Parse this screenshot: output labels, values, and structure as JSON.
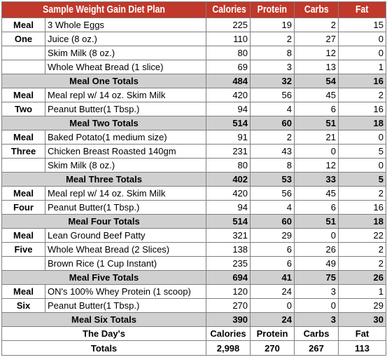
{
  "headers": {
    "title": "Sample Weight Gain Diet Plan",
    "calories": "Calories",
    "protein": "Protein",
    "carbs": "Carbs",
    "fat": "Fat"
  },
  "meals": [
    {
      "label_line1": "Meal",
      "label_line2": "One",
      "items": [
        {
          "food": "3 Whole Eggs",
          "calories": "225",
          "protein": "19",
          "carbs": "2",
          "fat": "15"
        },
        {
          "food": "Juice (8 oz.)",
          "calories": "110",
          "protein": "2",
          "carbs": "27",
          "fat": "0"
        },
        {
          "food": "Skim Milk (8 oz.)",
          "calories": "80",
          "protein": "8",
          "carbs": "12",
          "fat": "0"
        },
        {
          "food": "Whole Wheat Bread (1 slice)",
          "calories": "69",
          "protein": "3",
          "carbs": "13",
          "fat": "1"
        }
      ],
      "total": {
        "label": "Meal One Totals",
        "calories": "484",
        "protein": "32",
        "carbs": "54",
        "fat": "16"
      }
    },
    {
      "label_line1": "Meal",
      "label_line2": "Two",
      "items": [
        {
          "food": "Meal repl w/ 14 oz. Skim Milk",
          "calories": "420",
          "protein": "56",
          "carbs": "45",
          "fat": "2"
        },
        {
          "food": "Peanut Butter(1 Tbsp.)",
          "calories": "94",
          "protein": "4",
          "carbs": "6",
          "fat": "16"
        }
      ],
      "total": {
        "label": "Meal Two Totals",
        "calories": "514",
        "protein": "60",
        "carbs": "51",
        "fat": "18"
      }
    },
    {
      "label_line1": "Meal",
      "label_line2": "Three",
      "items": [
        {
          "food": "Baked Potato(1 medium size)",
          "calories": "91",
          "protein": "2",
          "carbs": "21",
          "fat": "0"
        },
        {
          "food": "Chicken Breast Roasted 140gm",
          "calories": "231",
          "protein": "43",
          "carbs": "0",
          "fat": "5"
        },
        {
          "food": "Skim Milk (8 oz.)",
          "calories": "80",
          "protein": "8",
          "carbs": "12",
          "fat": "0"
        }
      ],
      "total": {
        "label": "Meal Three Totals",
        "calories": "402",
        "protein": "53",
        "carbs": "33",
        "fat": "5"
      }
    },
    {
      "label_line1": "Meal",
      "label_line2": "Four",
      "items": [
        {
          "food": "Meal repl w/ 14 oz. Skim Milk",
          "calories": "420",
          "protein": "56",
          "carbs": "45",
          "fat": "2"
        },
        {
          "food": "Peanut Butter(1 Tbsp.)",
          "calories": "94",
          "protein": "4",
          "carbs": "6",
          "fat": "16"
        }
      ],
      "total": {
        "label": "Meal Four Totals",
        "calories": "514",
        "protein": "60",
        "carbs": "51",
        "fat": "18"
      }
    },
    {
      "label_line1": "Meal",
      "label_line2": "Five",
      "items": [
        {
          "food": "Lean Ground Beef Patty",
          "calories": "321",
          "protein": "29",
          "carbs": "0",
          "fat": "22"
        },
        {
          "food": "Whole Wheat Bread (2 Slices)",
          "calories": "138",
          "protein": "6",
          "carbs": "26",
          "fat": "2"
        },
        {
          "food": "Brown Rice (1 Cup Instant)",
          "calories": "235",
          "protein": "6",
          "carbs": "49",
          "fat": "2"
        }
      ],
      "total": {
        "label": "Meal Five Totals",
        "calories": "694",
        "protein": "41",
        "carbs": "75",
        "fat": "26"
      }
    },
    {
      "label_line1": "Meal",
      "label_line2": "Six",
      "items": [
        {
          "food": "ON's 100% Whey Protein (1 scoop)",
          "calories": "120",
          "protein": "24",
          "carbs": "3",
          "fat": "1"
        },
        {
          "food": "Peanut Butter(1 Tbsp.)",
          "calories": "270",
          "protein": "0",
          "carbs": "0",
          "fat": "29"
        }
      ],
      "total": {
        "label": "Meal Six Totals",
        "calories": "390",
        "protein": "24",
        "carbs": "3",
        "fat": "30"
      }
    }
  ],
  "day_header": {
    "label": "The Day's",
    "calories": "Calories",
    "protein": "Protein",
    "carbs": "Carbs",
    "fat": "Fat"
  },
  "grand_total": {
    "label": "Totals",
    "calories": "2,998",
    "protein": "270",
    "carbs": "267",
    "fat": "113"
  },
  "colors": {
    "header_bg": "#c0392b",
    "header_text": "#ffffff",
    "total_row_bg": "#d0d0d0"
  }
}
